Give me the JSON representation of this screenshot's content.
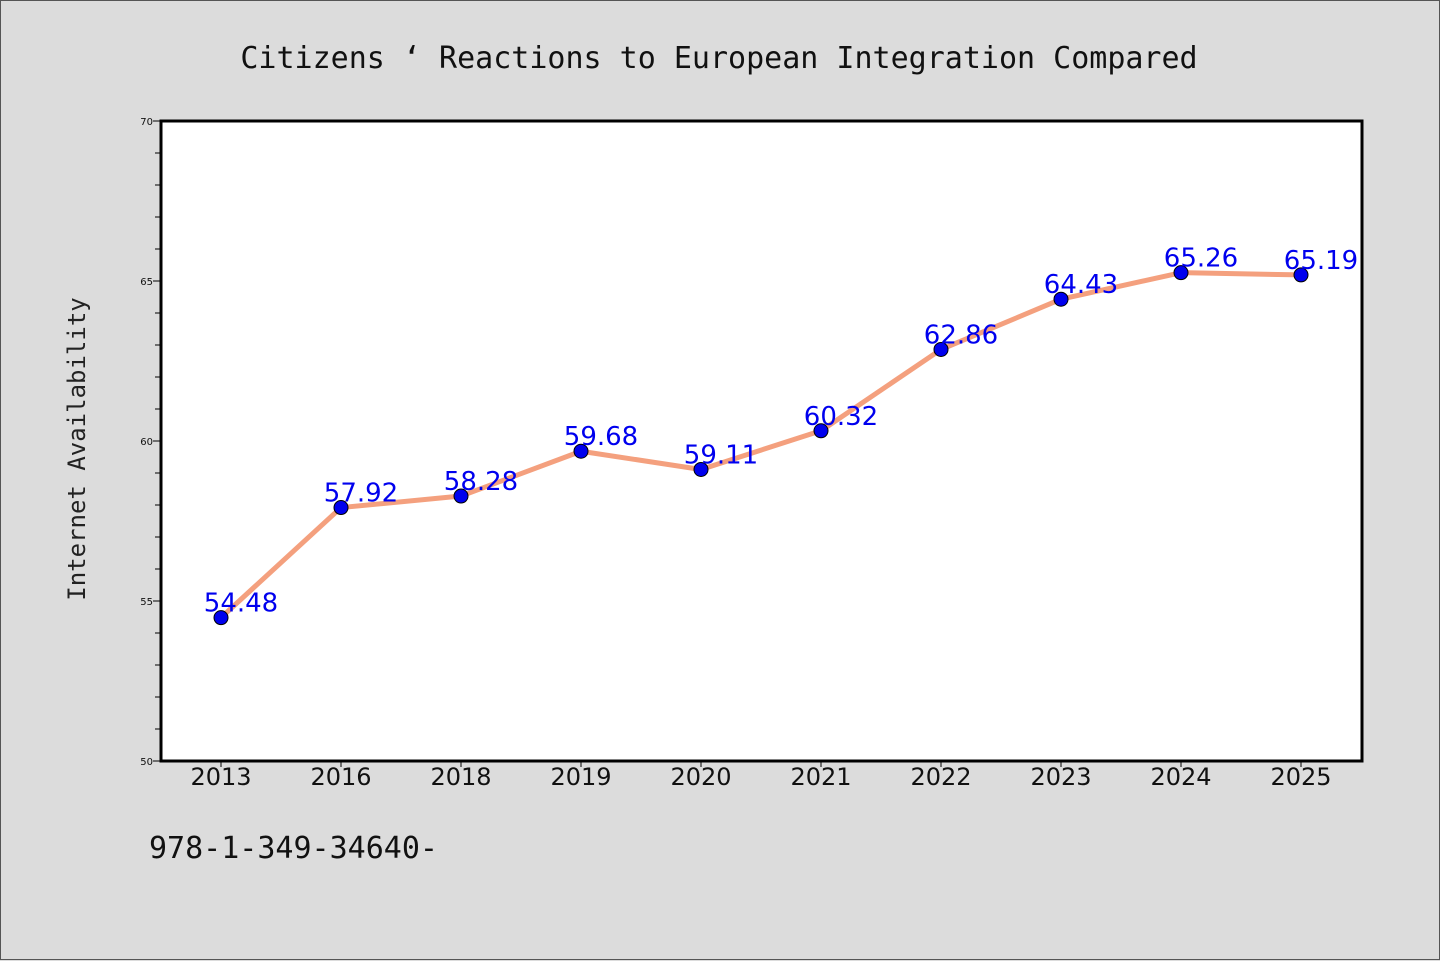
{
  "chart_data": {
    "type": "line",
    "title": "Citizens ‘ Reactions to European Integration Compared",
    "xlabel": "",
    "ylabel": "Internet Availability",
    "categories": [
      "2013",
      "2016",
      "2018",
      "2019",
      "2020",
      "2021",
      "2022",
      "2023",
      "2024",
      "2025"
    ],
    "series": [
      {
        "values": [
          54.48,
          57.92,
          58.28,
          59.68,
          59.11,
          60.32,
          62.86,
          64.43,
          65.26,
          65.19
        ],
        "data_labels": [
          "54.48",
          "57.92",
          "58.28",
          "59.68",
          "59.11",
          "60.32",
          "62.86",
          "64.43",
          "65.26",
          "65.19"
        ],
        "line_color": "#f4a07e",
        "marker_color": "#0000ee"
      }
    ],
    "ylim": [
      50,
      70
    ],
    "yticks": [
      "50",
      "55",
      "60",
      "65",
      "70"
    ],
    "grid": false,
    "legend": "none"
  },
  "footer": {
    "code": "978-1-349-34640-"
  }
}
